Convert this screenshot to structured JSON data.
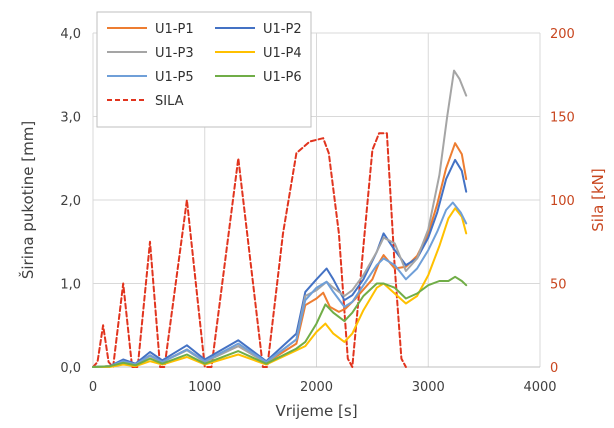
{
  "chart_data": {
    "type": "line",
    "xlabel": "Vrijeme [s]",
    "ylabel": "Širina pukotine [mm]",
    "y2label": "Sila [kN]",
    "xlim": [
      0,
      4000
    ],
    "ylim": [
      0,
      4.0
    ],
    "y2lim": [
      0,
      200
    ],
    "x_ticks": [
      "0",
      "1000",
      "2000",
      "3000",
      "4000"
    ],
    "y_ticks": [
      "0,0",
      "1,0",
      "2,0",
      "3,0",
      "4,0"
    ],
    "y2_ticks": [
      "0",
      "50",
      "100",
      "150",
      "200"
    ],
    "grid": true,
    "legend_position": "top-left",
    "series": [
      {
        "name": "U1-P1",
        "color": "#ed7d31",
        "axis": "left",
        "dash": "solid",
        "points": [
          [
            0,
            0
          ],
          [
            150,
            0.01
          ],
          [
            270,
            0.07
          ],
          [
            380,
            0.03
          ],
          [
            510,
            0.14
          ],
          [
            620,
            0.06
          ],
          [
            840,
            0.21
          ],
          [
            1000,
            0.07
          ],
          [
            1300,
            0.25
          ],
          [
            1550,
            0.05
          ],
          [
            1820,
            0.28
          ],
          [
            1900,
            0.74
          ],
          [
            2000,
            0.82
          ],
          [
            2060,
            0.89
          ],
          [
            2120,
            0.72
          ],
          [
            2200,
            0.66
          ],
          [
            2260,
            0.7
          ],
          [
            2350,
            0.82
          ],
          [
            2500,
            1.05
          ],
          [
            2560,
            1.25
          ],
          [
            2600,
            1.34
          ],
          [
            2700,
            1.18
          ],
          [
            2800,
            1.2
          ],
          [
            2900,
            1.33
          ],
          [
            3000,
            1.6
          ],
          [
            3080,
            1.95
          ],
          [
            3160,
            2.38
          ],
          [
            3240,
            2.68
          ],
          [
            3300,
            2.55
          ],
          [
            3340,
            2.25
          ]
        ]
      },
      {
        "name": "U1-P2",
        "color": "#4472c4",
        "axis": "left",
        "dash": "solid",
        "points": [
          [
            0,
            0
          ],
          [
            150,
            0.01
          ],
          [
            270,
            0.09
          ],
          [
            380,
            0.04
          ],
          [
            510,
            0.18
          ],
          [
            620,
            0.08
          ],
          [
            840,
            0.26
          ],
          [
            1000,
            0.09
          ],
          [
            1300,
            0.32
          ],
          [
            1550,
            0.07
          ],
          [
            1820,
            0.4
          ],
          [
            1900,
            0.9
          ],
          [
            2000,
            1.05
          ],
          [
            2090,
            1.18
          ],
          [
            2150,
            1.05
          ],
          [
            2250,
            0.8
          ],
          [
            2320,
            0.86
          ],
          [
            2420,
            1.05
          ],
          [
            2540,
            1.38
          ],
          [
            2600,
            1.6
          ],
          [
            2700,
            1.4
          ],
          [
            2800,
            1.22
          ],
          [
            2900,
            1.3
          ],
          [
            3000,
            1.55
          ],
          [
            3080,
            1.85
          ],
          [
            3160,
            2.25
          ],
          [
            3240,
            2.48
          ],
          [
            3300,
            2.35
          ],
          [
            3340,
            2.1
          ]
        ]
      },
      {
        "name": "U1-P3",
        "color": "#a5a5a5",
        "axis": "left",
        "dash": "solid",
        "points": [
          [
            0,
            0
          ],
          [
            150,
            0.01
          ],
          [
            270,
            0.06
          ],
          [
            380,
            0.03
          ],
          [
            510,
            0.13
          ],
          [
            620,
            0.06
          ],
          [
            840,
            0.2
          ],
          [
            1000,
            0.06
          ],
          [
            1300,
            0.25
          ],
          [
            1550,
            0.05
          ],
          [
            1820,
            0.33
          ],
          [
            1900,
            0.85
          ],
          [
            2000,
            0.92
          ],
          [
            2090,
            1.02
          ],
          [
            2150,
            0.95
          ],
          [
            2250,
            0.85
          ],
          [
            2320,
            0.92
          ],
          [
            2420,
            1.1
          ],
          [
            2540,
            1.38
          ],
          [
            2600,
            1.55
          ],
          [
            2700,
            1.48
          ],
          [
            2800,
            1.15
          ],
          [
            2900,
            1.3
          ],
          [
            3000,
            1.65
          ],
          [
            3100,
            2.3
          ],
          [
            3170,
            3.0
          ],
          [
            3230,
            3.55
          ],
          [
            3280,
            3.45
          ],
          [
            3340,
            3.25
          ]
        ]
      },
      {
        "name": "U1-P4",
        "color": "#ffc000",
        "axis": "left",
        "dash": "solid",
        "points": [
          [
            0,
            0
          ],
          [
            150,
            0.0
          ],
          [
            270,
            0.03
          ],
          [
            380,
            0.01
          ],
          [
            510,
            0.07
          ],
          [
            620,
            0.03
          ],
          [
            840,
            0.12
          ],
          [
            1000,
            0.03
          ],
          [
            1300,
            0.15
          ],
          [
            1550,
            0.03
          ],
          [
            1820,
            0.2
          ],
          [
            1900,
            0.25
          ],
          [
            2000,
            0.42
          ],
          [
            2080,
            0.52
          ],
          [
            2150,
            0.4
          ],
          [
            2250,
            0.3
          ],
          [
            2320,
            0.4
          ],
          [
            2420,
            0.68
          ],
          [
            2540,
            0.95
          ],
          [
            2600,
            1.0
          ],
          [
            2700,
            0.88
          ],
          [
            2800,
            0.76
          ],
          [
            2900,
            0.85
          ],
          [
            3000,
            1.1
          ],
          [
            3100,
            1.45
          ],
          [
            3180,
            1.78
          ],
          [
            3240,
            1.9
          ],
          [
            3300,
            1.8
          ],
          [
            3340,
            1.6
          ]
        ]
      },
      {
        "name": "U1-P5",
        "color": "#6f9fd8",
        "axis": "left",
        "dash": "solid",
        "points": [
          [
            0,
            0
          ],
          [
            150,
            0.01
          ],
          [
            270,
            0.07
          ],
          [
            380,
            0.03
          ],
          [
            510,
            0.14
          ],
          [
            620,
            0.06
          ],
          [
            840,
            0.21
          ],
          [
            1000,
            0.07
          ],
          [
            1300,
            0.28
          ],
          [
            1550,
            0.06
          ],
          [
            1820,
            0.33
          ],
          [
            1900,
            0.8
          ],
          [
            2000,
            0.95
          ],
          [
            2090,
            1.02
          ],
          [
            2150,
            0.9
          ],
          [
            2250,
            0.72
          ],
          [
            2320,
            0.78
          ],
          [
            2420,
            0.98
          ],
          [
            2540,
            1.22
          ],
          [
            2600,
            1.3
          ],
          [
            2700,
            1.22
          ],
          [
            2800,
            1.05
          ],
          [
            2900,
            1.18
          ],
          [
            3000,
            1.4
          ],
          [
            3080,
            1.62
          ],
          [
            3160,
            1.88
          ],
          [
            3220,
            1.97
          ],
          [
            3290,
            1.85
          ],
          [
            3340,
            1.72
          ]
        ]
      },
      {
        "name": "U1-P6",
        "color": "#70ad47",
        "axis": "left",
        "dash": "solid",
        "points": [
          [
            0,
            0
          ],
          [
            150,
            0.01
          ],
          [
            270,
            0.05
          ],
          [
            380,
            0.02
          ],
          [
            510,
            0.1
          ],
          [
            620,
            0.04
          ],
          [
            840,
            0.15
          ],
          [
            1000,
            0.04
          ],
          [
            1300,
            0.19
          ],
          [
            1550,
            0.04
          ],
          [
            1820,
            0.22
          ],
          [
            1900,
            0.3
          ],
          [
            2000,
            0.52
          ],
          [
            2080,
            0.75
          ],
          [
            2150,
            0.65
          ],
          [
            2250,
            0.55
          ],
          [
            2320,
            0.65
          ],
          [
            2420,
            0.85
          ],
          [
            2540,
            1.0
          ],
          [
            2600,
            1.0
          ],
          [
            2700,
            0.95
          ],
          [
            2800,
            0.82
          ],
          [
            2900,
            0.88
          ],
          [
            3000,
            0.98
          ],
          [
            3100,
            1.03
          ],
          [
            3180,
            1.03
          ],
          [
            3240,
            1.08
          ],
          [
            3300,
            1.03
          ],
          [
            3340,
            0.98
          ]
        ]
      },
      {
        "name": "SILA",
        "color": "#e1341e",
        "axis": "right",
        "dash": "dashed",
        "points": [
          [
            0,
            0
          ],
          [
            40,
            3
          ],
          [
            90,
            25
          ],
          [
            140,
            3
          ],
          [
            180,
            0
          ],
          [
            270,
            50
          ],
          [
            350,
            0
          ],
          [
            400,
            0
          ],
          [
            510,
            75
          ],
          [
            600,
            0
          ],
          [
            640,
            0
          ],
          [
            840,
            100
          ],
          [
            1000,
            0
          ],
          [
            1060,
            0
          ],
          [
            1300,
            125
          ],
          [
            1520,
            0
          ],
          [
            1560,
            0
          ],
          [
            1700,
            80
          ],
          [
            1820,
            128
          ],
          [
            1940,
            135
          ],
          [
            2060,
            137
          ],
          [
            2110,
            128
          ],
          [
            2200,
            80
          ],
          [
            2280,
            5
          ],
          [
            2320,
            0
          ],
          [
            2430,
            80
          ],
          [
            2500,
            130
          ],
          [
            2560,
            140
          ],
          [
            2630,
            140
          ],
          [
            2700,
            60
          ],
          [
            2760,
            5
          ],
          [
            2800,
            0
          ]
        ]
      }
    ]
  }
}
